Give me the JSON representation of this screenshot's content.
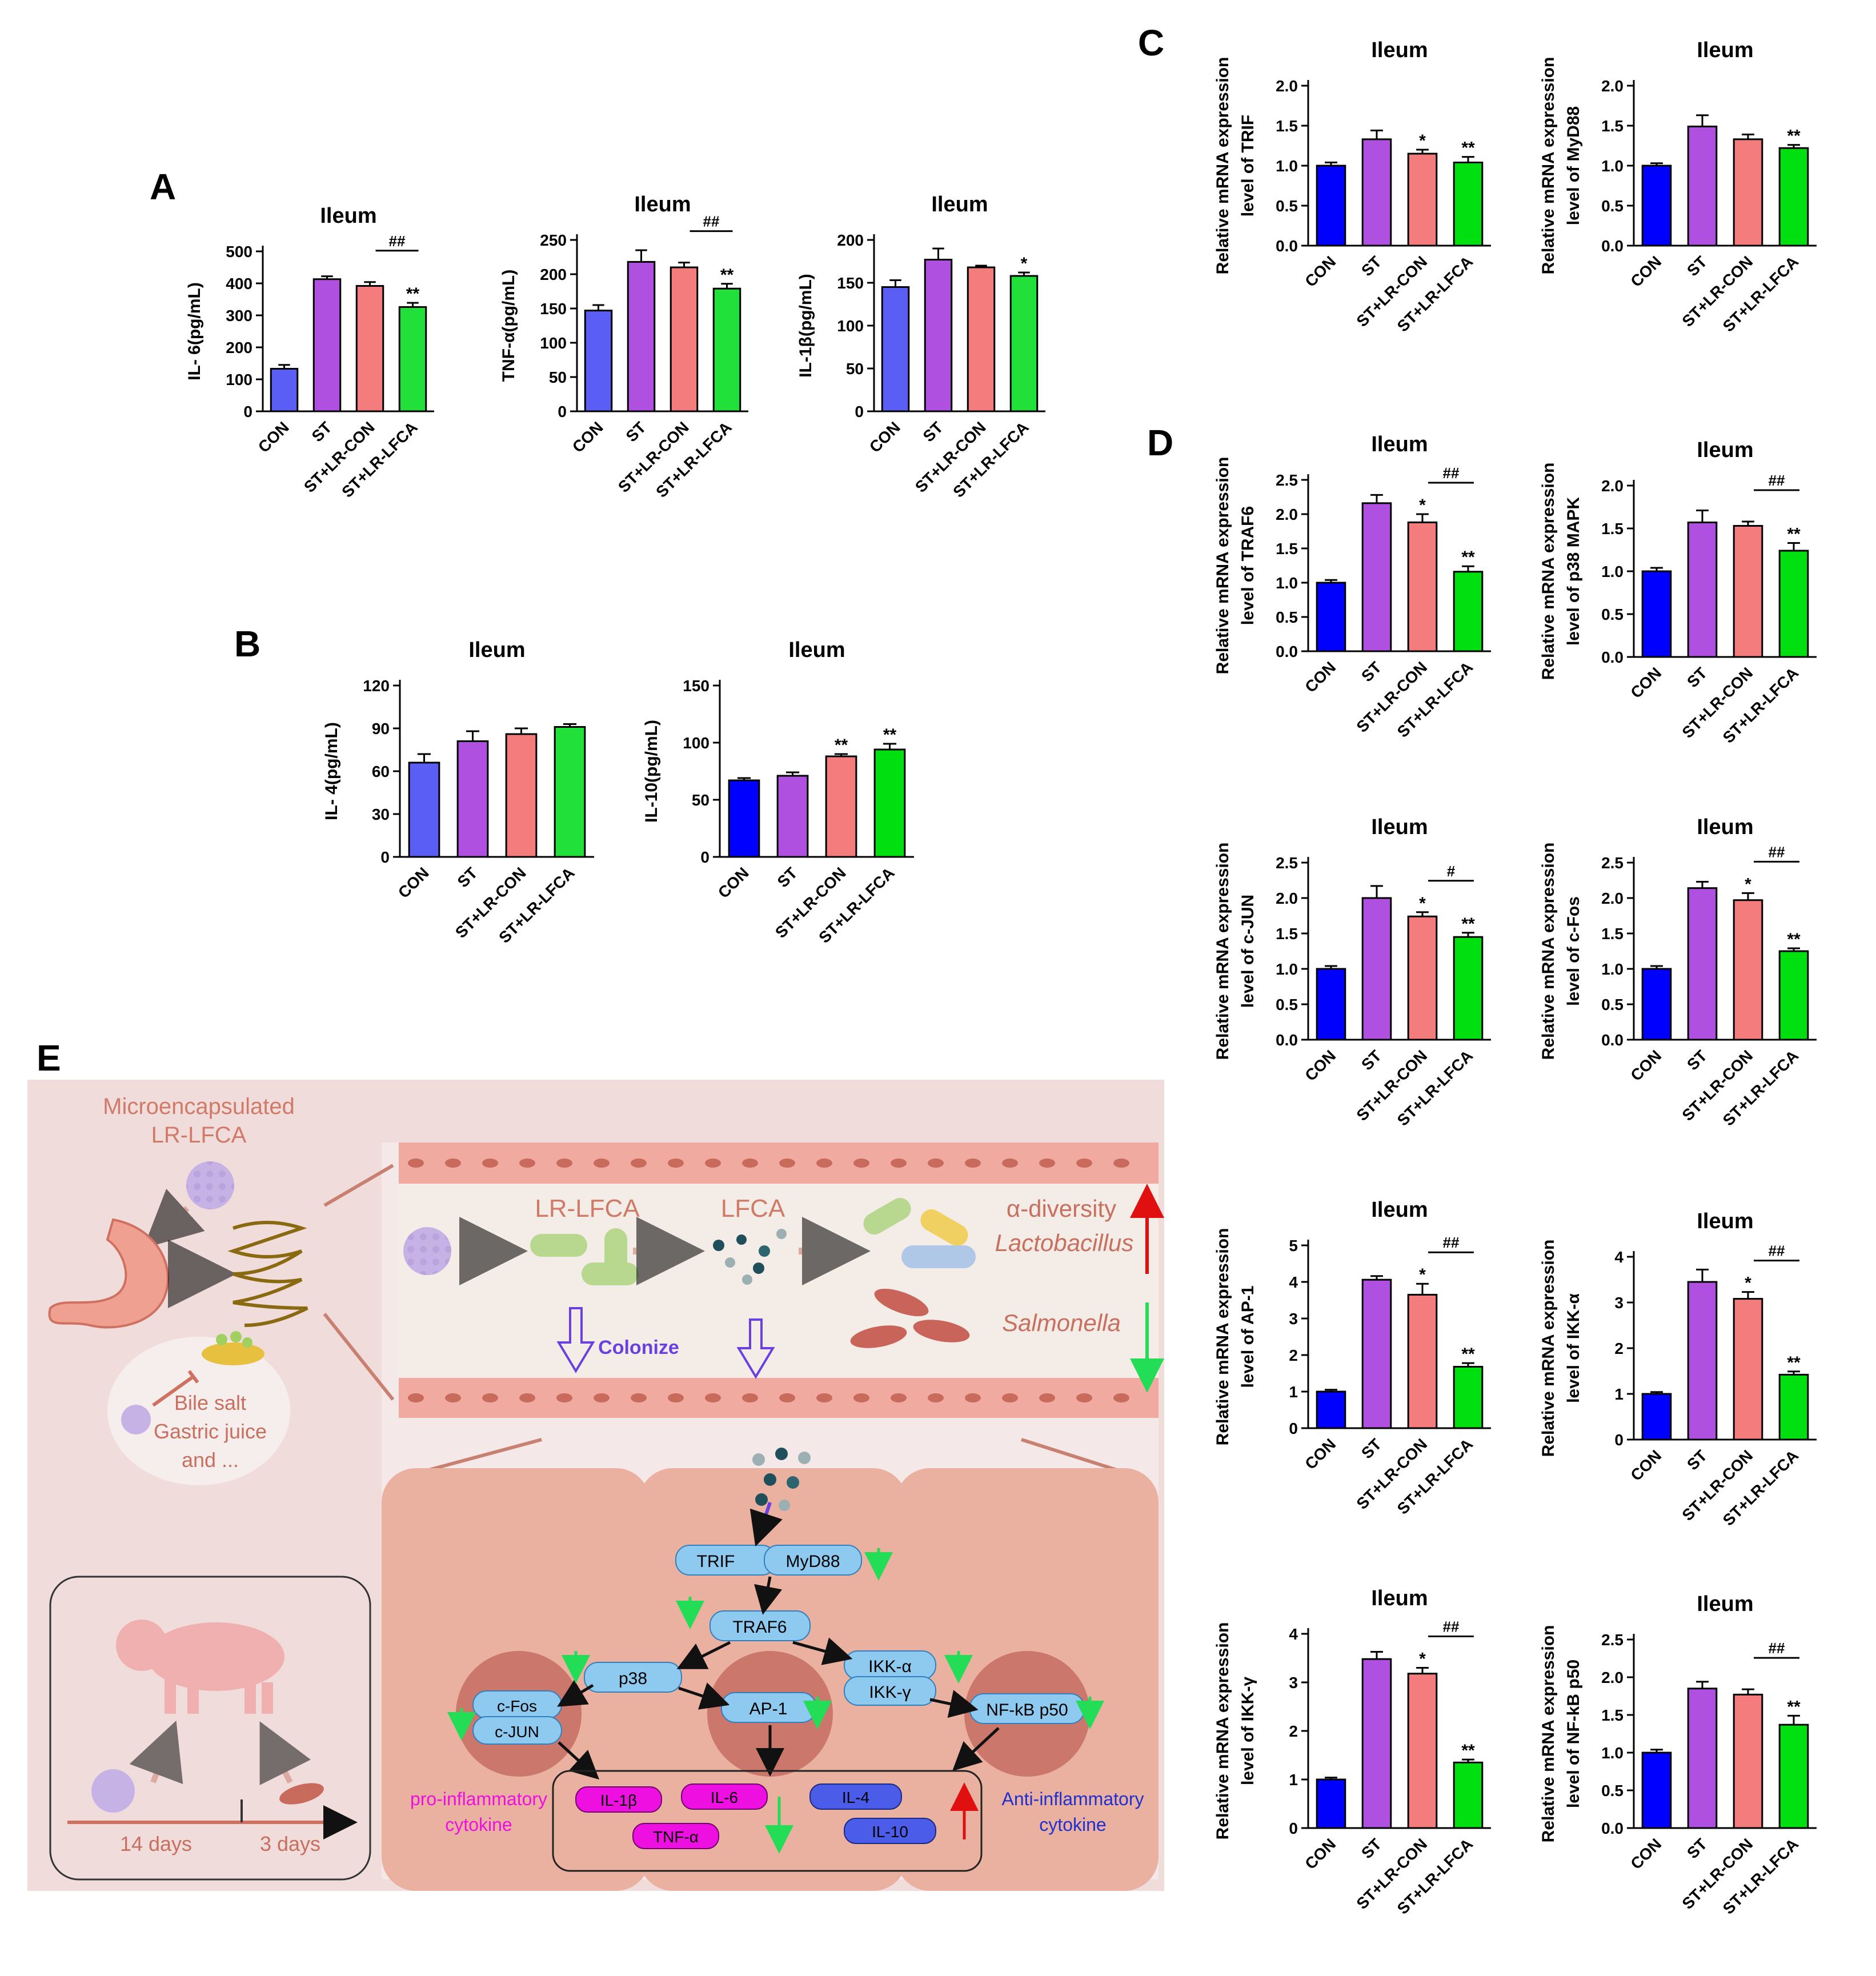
{
  "panels": {
    "a": "A",
    "b": "B",
    "c": "C",
    "d": "D",
    "e": "E"
  },
  "chart_data": [
    {
      "id": "a1",
      "type": "bar",
      "title": "Ileum",
      "ylabel": "IL- 6(pg/mL)",
      "ylim": [
        0,
        500
      ],
      "yticks": [
        "0",
        "100",
        "200",
        "300",
        "400",
        "500"
      ],
      "categories": [
        "CON",
        "ST",
        "ST+LR-CON",
        "ST+LR-LFCA"
      ],
      "values": [
        133,
        413,
        392,
        326
      ],
      "errors": [
        12,
        9,
        12,
        13
      ],
      "colors": [
        "#5a5ef5",
        "#b050e0",
        "#f57c7c",
        "#22e03a"
      ],
      "stars": [
        "",
        "",
        "",
        "**"
      ],
      "hash": {
        "from": 2,
        "to": 3,
        "text": "##"
      }
    },
    {
      "id": "a2",
      "type": "bar",
      "title": "Ileum",
      "ylabel": "TNF-α(pg/mL)",
      "ylim": [
        0,
        250
      ],
      "yticks": [
        "0",
        "50",
        "100",
        "150",
        "200",
        "250"
      ],
      "categories": [
        "CON",
        "ST",
        "ST+LR-CON",
        "ST+LR-LFCA"
      ],
      "values": [
        147,
        218,
        210,
        179
      ],
      "errors": [
        8,
        17,
        7,
        7
      ],
      "colors": [
        "#5a5ef5",
        "#b050e0",
        "#f57c7c",
        "#22e03a"
      ],
      "stars": [
        "",
        "",
        "",
        "**"
      ],
      "hash": {
        "from": 2,
        "to": 3,
        "text": "##"
      }
    },
    {
      "id": "a3",
      "type": "bar",
      "title": "Ileum",
      "ylabel": "IL-1β(pg/mL)",
      "ylim": [
        0,
        200
      ],
      "yticks": [
        "0",
        "50",
        "100",
        "150",
        "200"
      ],
      "categories": [
        "CON",
        "ST",
        "ST+LR-CON",
        "ST+LR-LFCA"
      ],
      "values": [
        145,
        177,
        168,
        158
      ],
      "errors": [
        8,
        13,
        2,
        4
      ],
      "colors": [
        "#5a5ef5",
        "#b050e0",
        "#f57c7c",
        "#22e03a"
      ],
      "stars": [
        "",
        "",
        "",
        "*"
      ],
      "hash": null
    },
    {
      "id": "b1",
      "type": "bar",
      "title": "Ileum",
      "ylabel": "IL- 4(pg/mL)",
      "ylim": [
        0,
        120
      ],
      "yticks": [
        "0",
        "30",
        "60",
        "90",
        "120"
      ],
      "categories": [
        "CON",
        "ST",
        "ST+LR-CON",
        "ST+LR-LFCA"
      ],
      "values": [
        66,
        81,
        86,
        91
      ],
      "errors": [
        6,
        7,
        4,
        2
      ],
      "colors": [
        "#5a5ef5",
        "#b050e0",
        "#f57c7c",
        "#22e03a"
      ],
      "stars": [
        "",
        "",
        "",
        ""
      ],
      "hash": null
    },
    {
      "id": "b2",
      "type": "bar",
      "title": "Ileum",
      "ylabel": "IL-10(pg/mL)",
      "ylim": [
        0,
        150
      ],
      "yticks": [
        "0",
        "50",
        "100",
        "150"
      ],
      "categories": [
        "CON",
        "ST",
        "ST+LR-CON",
        "ST+LR-LFCA"
      ],
      "values": [
        67,
        71,
        88,
        94
      ],
      "errors": [
        2,
        3,
        2,
        5
      ],
      "colors": [
        "#0000ff",
        "#b050e0",
        "#f57c7c",
        "#00e010"
      ],
      "stars": [
        "",
        "",
        "**",
        "**"
      ],
      "hash": null
    },
    {
      "id": "c1",
      "type": "bar",
      "title": "Ileum",
      "ylabel": "Relative mRNA expression|level of TRIF",
      "ylim": [
        0,
        2
      ],
      "yticks": [
        "0.0",
        "0.5",
        "1.0",
        "1.5",
        "2.0"
      ],
      "categories": [
        "CON",
        "ST",
        "ST+LR-CON",
        "ST+LR-LFCA"
      ],
      "values": [
        1.0,
        1.33,
        1.15,
        1.04
      ],
      "errors": [
        0.04,
        0.11,
        0.05,
        0.07
      ],
      "colors": [
        "#0000ff",
        "#b050e0",
        "#f57c7c",
        "#00e010"
      ],
      "stars": [
        "",
        "",
        "*",
        "**"
      ],
      "hash": null
    },
    {
      "id": "c2",
      "type": "bar",
      "title": "Ileum",
      "ylabel": "Relative mRNA expression|level of MyD88",
      "ylim": [
        0,
        2
      ],
      "yticks": [
        "0.0",
        "0.5",
        "1.0",
        "1.5",
        "2.0"
      ],
      "categories": [
        "CON",
        "ST",
        "ST+LR-CON",
        "ST+LR-LFCA"
      ],
      "values": [
        1.0,
        1.49,
        1.33,
        1.22
      ],
      "errors": [
        0.03,
        0.14,
        0.06,
        0.04
      ],
      "colors": [
        "#0000ff",
        "#b050e0",
        "#f57c7c",
        "#00e010"
      ],
      "stars": [
        "",
        "",
        "",
        "**"
      ],
      "hash": null
    },
    {
      "id": "d1",
      "type": "bar",
      "title": "Ileum",
      "ylabel": "Relative mRNA expression|level of TRAF6",
      "ylim": [
        0,
        2.5
      ],
      "yticks": [
        "0.0",
        "0.5",
        "1.0",
        "1.5",
        "2.0",
        "2.5"
      ],
      "categories": [
        "CON",
        "ST",
        "ST+LR-CON",
        "ST+LR-LFCA"
      ],
      "values": [
        1.0,
        2.16,
        1.88,
        1.16
      ],
      "errors": [
        0.04,
        0.12,
        0.12,
        0.08
      ],
      "colors": [
        "#0000ff",
        "#b050e0",
        "#f57c7c",
        "#00e010"
      ],
      "stars": [
        "",
        "",
        "*",
        "**"
      ],
      "hash": {
        "from": 2,
        "to": 3,
        "text": "##"
      }
    },
    {
      "id": "d2",
      "type": "bar",
      "title": "Ileum",
      "ylabel": "Relative mRNA expression|level of p38 MAPK",
      "ylim": [
        0,
        2
      ],
      "yticks": [
        "0.0",
        "0.5",
        "1.0",
        "1.5",
        "2.0"
      ],
      "categories": [
        "CON",
        "ST",
        "ST+LR-CON",
        "ST+LR-LFCA"
      ],
      "values": [
        1.0,
        1.57,
        1.53,
        1.24
      ],
      "errors": [
        0.04,
        0.14,
        0.05,
        0.09
      ],
      "colors": [
        "#0000ff",
        "#b050e0",
        "#f57c7c",
        "#00e010"
      ],
      "stars": [
        "",
        "",
        "",
        "**"
      ],
      "hash": {
        "from": 2,
        "to": 3,
        "text": "##"
      }
    },
    {
      "id": "d3",
      "type": "bar",
      "title": "Ileum",
      "ylabel": "Relative mRNA expression|level of c-JUN",
      "ylim": [
        0,
        2.5
      ],
      "yticks": [
        "0.0",
        "0.5",
        "1.0",
        "1.5",
        "2.0",
        "2.5"
      ],
      "categories": [
        "CON",
        "ST",
        "ST+LR-CON",
        "ST+LR-LFCA"
      ],
      "values": [
        1.0,
        2.0,
        1.74,
        1.45
      ],
      "errors": [
        0.04,
        0.17,
        0.06,
        0.06
      ],
      "colors": [
        "#0000ff",
        "#b050e0",
        "#f57c7c",
        "#00e010"
      ],
      "stars": [
        "",
        "",
        "*",
        "**"
      ],
      "hash": {
        "from": 2,
        "to": 3,
        "text": "#"
      }
    },
    {
      "id": "d4",
      "type": "bar",
      "title": "Ileum",
      "ylabel": "Relative mRNA expression|level of c-Fos",
      "ylim": [
        0,
        2.5
      ],
      "yticks": [
        "0.0",
        "0.5",
        "1.0",
        "1.5",
        "2.0",
        "2.5"
      ],
      "categories": [
        "CON",
        "ST",
        "ST+LR-CON",
        "ST+LR-LFCA"
      ],
      "values": [
        1.0,
        2.14,
        1.97,
        1.25
      ],
      "errors": [
        0.04,
        0.09,
        0.1,
        0.04
      ],
      "colors": [
        "#0000ff",
        "#b050e0",
        "#f57c7c",
        "#00e010"
      ],
      "stars": [
        "",
        "",
        "*",
        "**"
      ],
      "hash": {
        "from": 2,
        "to": 3,
        "text": "##"
      }
    },
    {
      "id": "d5",
      "type": "bar",
      "title": "Ileum",
      "ylabel": "Relative mRNA expression|level of AP-1",
      "ylim": [
        0,
        5
      ],
      "yticks": [
        "0",
        "1",
        "2",
        "3",
        "4",
        "5"
      ],
      "categories": [
        "CON",
        "ST",
        "ST+LR-CON",
        "ST+LR-LFCA"
      ],
      "values": [
        1.0,
        4.06,
        3.65,
        1.68
      ],
      "errors": [
        0.05,
        0.1,
        0.3,
        0.1
      ],
      "colors": [
        "#0000ff",
        "#b050e0",
        "#f57c7c",
        "#00e010"
      ],
      "stars": [
        "",
        "",
        "*",
        "**"
      ],
      "hash": {
        "from": 2,
        "to": 3,
        "text": "##"
      }
    },
    {
      "id": "d6",
      "type": "bar",
      "title": "Ileum",
      "ylabel": "Relative mRNA expression|level of IKK-α",
      "ylim": [
        0,
        4
      ],
      "yticks": [
        "0",
        "1",
        "2",
        "3",
        "4"
      ],
      "categories": [
        "CON",
        "ST",
        "ST+LR-CON",
        "ST+LR-LFCA"
      ],
      "values": [
        1.0,
        3.45,
        3.08,
        1.42
      ],
      "errors": [
        0.04,
        0.27,
        0.15,
        0.07
      ],
      "colors": [
        "#0000ff",
        "#b050e0",
        "#f57c7c",
        "#00e010"
      ],
      "stars": [
        "",
        "",
        "*",
        "**"
      ],
      "hash": {
        "from": 2,
        "to": 3,
        "text": "##"
      }
    },
    {
      "id": "d7",
      "type": "bar",
      "title": "Ileum",
      "ylabel": "Relative mRNA expression|level of IKK-γ",
      "ylim": [
        0,
        4
      ],
      "yticks": [
        "0",
        "1",
        "2",
        "3",
        "4"
      ],
      "categories": [
        "CON",
        "ST",
        "ST+LR-CON",
        "ST+LR-LFCA"
      ],
      "values": [
        1.0,
        3.48,
        3.18,
        1.35
      ],
      "errors": [
        0.04,
        0.15,
        0.12,
        0.06
      ],
      "colors": [
        "#0000ff",
        "#b050e0",
        "#f57c7c",
        "#00e010"
      ],
      "stars": [
        "",
        "",
        "*",
        "**"
      ],
      "hash": {
        "from": 2,
        "to": 3,
        "text": "##"
      }
    },
    {
      "id": "d8",
      "type": "bar",
      "title": "Ileum",
      "ylabel": "Relative mRNA expression|level of NF-kB p50",
      "ylim": [
        0,
        2.5
      ],
      "yticks": [
        "0.0",
        "0.5",
        "1.0",
        "1.5",
        "2.0",
        "2.5"
      ],
      "categories": [
        "CON",
        "ST",
        "ST+LR-CON",
        "ST+LR-LFCA"
      ],
      "values": [
        1.0,
        1.85,
        1.77,
        1.37
      ],
      "errors": [
        0.04,
        0.09,
        0.07,
        0.12
      ],
      "colors": [
        "#0000ff",
        "#b050e0",
        "#f57c7c",
        "#00e010"
      ],
      "stars": [
        "",
        "",
        "",
        "**"
      ],
      "hash": {
        "from": 2,
        "to": 3,
        "text": "##"
      }
    }
  ],
  "schematic": {
    "microencapsulated": "Microencapsulated",
    "lr_lfca_top": "LR-LFCA",
    "bile_salt": "Bile salt",
    "gastric_juice": "Gastric juice",
    "and_more": "and ...",
    "days14": "14 days",
    "days3": "3 days",
    "lumen_lr_lfca": "LR-LFCA",
    "lumen_lfca": "LFCA",
    "colonize": "Colonize",
    "alpha_diversity": "α-diversity",
    "lactobacillus": "Lactobacillus",
    "salmonella": "Salmonella",
    "trif": "TRIF",
    "myd88": "MyD88",
    "traf6": "TRAF6",
    "p38": "p38",
    "ikk_a": "IKK-α",
    "ikk_g": "IKK-γ",
    "cfos": "c-Fos",
    "cjun": "c-JUN",
    "ap1": "AP-1",
    "nfkb": "NF-kB p50",
    "il1b": "IL-1β",
    "il6": "IL-6",
    "tnfa": "TNF-α",
    "il4": "IL-4",
    "il10": "IL-10",
    "pro1": "pro-inflammatory",
    "pro2": "cytokine",
    "anti1": "Anti-inflammatory",
    "anti2": "cytokine"
  }
}
